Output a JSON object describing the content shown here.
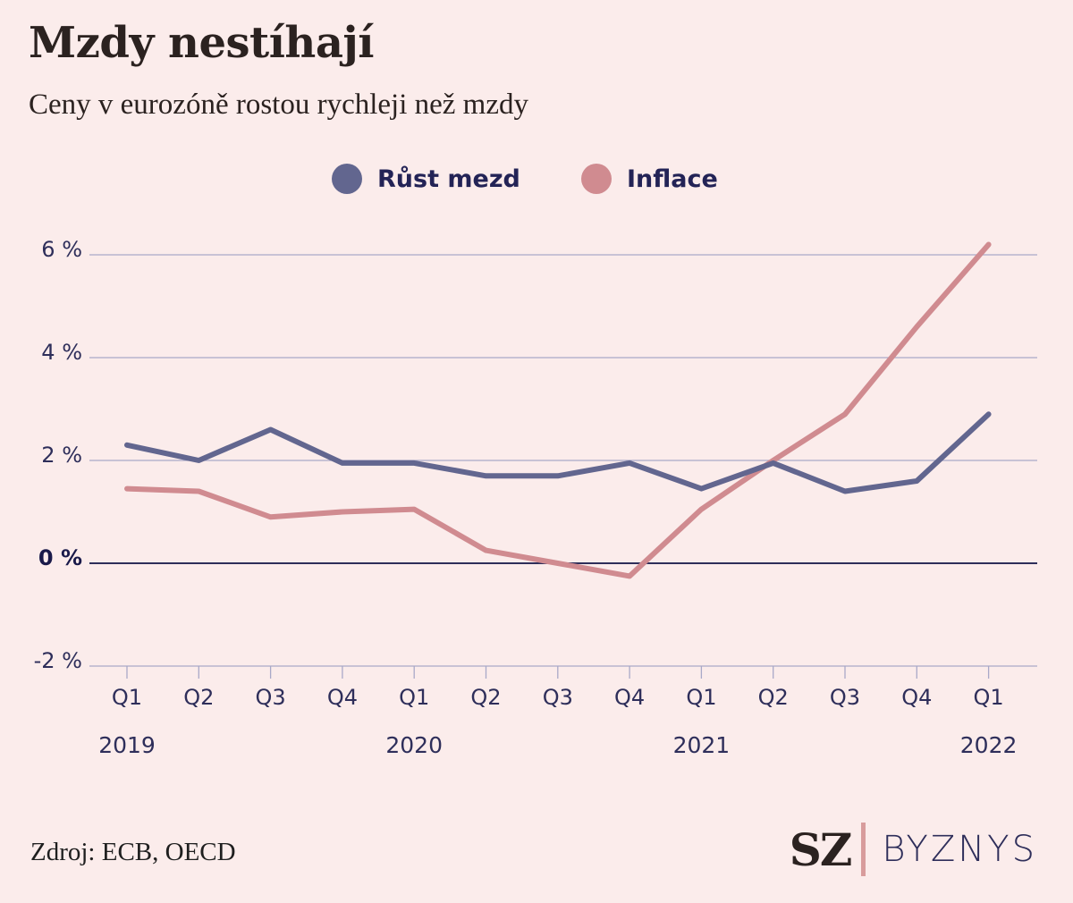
{
  "header": {
    "title": "Mzdy nestíhají",
    "subtitle": "Ceny v eurozóně rostou rychleji než mzdy"
  },
  "footer": {
    "source": "Zdroj: ECB, OECD",
    "logo_sz": "SZ",
    "logo_byznys": "BYZNYS"
  },
  "colors": {
    "background": "#fbeceb",
    "wages": "#62668f",
    "inflation": "#d08b90",
    "gridline": "#a9a9c8",
    "zero_line": "#2e2e5a",
    "text": "#2e2e5a"
  },
  "chart_data": {
    "type": "line",
    "title": "Mzdy nestíhají",
    "subtitle": "Ceny v eurozóně rostou rychleji než mzdy",
    "categories": [
      "Q1",
      "Q2",
      "Q3",
      "Q4",
      "Q1",
      "Q2",
      "Q3",
      "Q4",
      "Q1",
      "Q2",
      "Q3",
      "Q4",
      "Q1"
    ],
    "years": [
      {
        "label": "2019",
        "index": 0
      },
      {
        "label": "2020",
        "index": 4
      },
      {
        "label": "2021",
        "index": 8
      },
      {
        "label": "2022",
        "index": 12
      }
    ],
    "series": [
      {
        "name": "Růst mezd",
        "color": "#62668f",
        "values": [
          2.3,
          2.0,
          2.6,
          1.95,
          1.95,
          1.7,
          1.7,
          1.95,
          1.45,
          1.95,
          1.4,
          1.6,
          2.9
        ]
      },
      {
        "name": "Inflace",
        "color": "#d08b90",
        "values": [
          1.45,
          1.4,
          0.9,
          1.0,
          1.05,
          0.25,
          0.0,
          -0.25,
          1.05,
          2.0,
          2.9,
          4.6,
          6.2
        ]
      }
    ],
    "yticks": [
      {
        "value": 6,
        "label": "6 %"
      },
      {
        "value": 4,
        "label": "4 %"
      },
      {
        "value": 2,
        "label": "2 %"
      },
      {
        "value": 0,
        "label": "0 %"
      },
      {
        "value": -2,
        "label": "-2 %"
      }
    ],
    "ylim": [
      -2,
      6
    ],
    "xlabel": "",
    "ylabel": "",
    "grid": true,
    "legend_position": "top-center"
  }
}
